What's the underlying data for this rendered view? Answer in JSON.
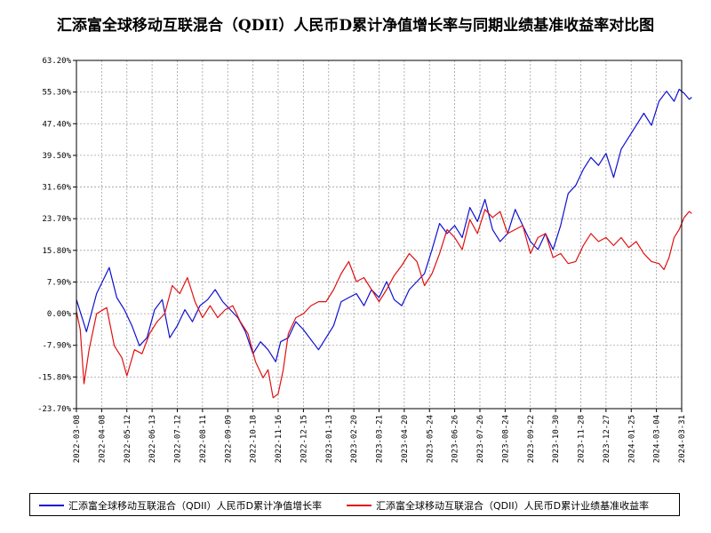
{
  "title": "汇添富全球移动互联混合（QDII）人民币D累计净值增长率与同期业绩基准收益率对比图",
  "colors": {
    "fund": "#1010d0",
    "benchmark": "#e01010",
    "grid": "#a0a0a0",
    "axis": "#000000"
  },
  "chart_data": {
    "type": "line",
    "title": "汇添富全球移动互联混合（QDII）人民币D累计净值增长率与同期业绩基准收益率对比图",
    "y_ticks": [
      "63.20%",
      "55.30%",
      "47.40%",
      "39.50%",
      "31.60%",
      "23.70%",
      "15.80%",
      "7.90%",
      "0.00%",
      "-7.90%",
      "-15.80%",
      "-23.70%"
    ],
    "ylim": [
      -23.7,
      63.2
    ],
    "x_ticks": [
      "2022-03-08",
      "2022-04-08",
      "2022-05-12",
      "2022-06-13",
      "2022-07-12",
      "2022-08-11",
      "2022-09-09",
      "2022-10-18",
      "2022-11-16",
      "2022-12-15",
      "2023-01-13",
      "2023-02-20",
      "2023-03-21",
      "2023-04-20",
      "2023-05-24",
      "2023-06-26",
      "2023-07-26",
      "2023-08-24",
      "2023-09-22",
      "2023-10-30",
      "2023-11-28",
      "2023-12-27",
      "2024-01-25",
      "2024-03-04",
      "2024-03-31"
    ],
    "grid": true,
    "legend_position": "bottom",
    "series": [
      {
        "name": "汇添富全球移动互联混合（QDII）人民币D累计净值增长率",
        "color": "#1010d0",
        "points": [
          [
            0,
            3.5
          ],
          [
            0.4,
            -4.5
          ],
          [
            0.8,
            5.0
          ],
          [
            1.3,
            11.5
          ],
          [
            1.6,
            4.0
          ],
          [
            1.9,
            1.0
          ],
          [
            2.2,
            -3.0
          ],
          [
            2.5,
            -8.0
          ],
          [
            2.8,
            -6.0
          ],
          [
            3.1,
            1.0
          ],
          [
            3.4,
            3.5
          ],
          [
            3.7,
            -6.0
          ],
          [
            4.0,
            -3.0
          ],
          [
            4.3,
            1.0
          ],
          [
            4.6,
            -2.0
          ],
          [
            4.9,
            2.0
          ],
          [
            5.2,
            3.5
          ],
          [
            5.5,
            6.0
          ],
          [
            5.8,
            3.0
          ],
          [
            6.1,
            1.0
          ],
          [
            6.4,
            -1.0
          ],
          [
            6.7,
            -4.5
          ],
          [
            7.0,
            -10.0
          ],
          [
            7.3,
            -7.0
          ],
          [
            7.6,
            -9.0
          ],
          [
            7.9,
            -12.0
          ],
          [
            8.1,
            -7.0
          ],
          [
            8.4,
            -6.0
          ],
          [
            8.7,
            -2.0
          ],
          [
            9.0,
            -4.0
          ],
          [
            9.3,
            -6.5
          ],
          [
            9.6,
            -9.0
          ],
          [
            9.9,
            -6.0
          ],
          [
            10.2,
            -3.0
          ],
          [
            10.5,
            3.0
          ],
          [
            10.8,
            4.0
          ],
          [
            11.1,
            5.0
          ],
          [
            11.4,
            2.0
          ],
          [
            11.7,
            6.0
          ],
          [
            12.0,
            4.0
          ],
          [
            12.3,
            8.0
          ],
          [
            12.6,
            3.5
          ],
          [
            12.9,
            2.0
          ],
          [
            13.2,
            6.0
          ],
          [
            13.5,
            8.0
          ],
          [
            13.8,
            10.0
          ],
          [
            14.1,
            16.0
          ],
          [
            14.4,
            22.5
          ],
          [
            14.7,
            20.0
          ],
          [
            15.0,
            22.0
          ],
          [
            15.3,
            19.0
          ],
          [
            15.6,
            26.5
          ],
          [
            15.9,
            23.0
          ],
          [
            16.2,
            28.5
          ],
          [
            16.5,
            21.0
          ],
          [
            16.8,
            18.0
          ],
          [
            17.1,
            20.0
          ],
          [
            17.4,
            26.0
          ],
          [
            17.7,
            22.0
          ],
          [
            18.0,
            18.0
          ],
          [
            18.3,
            16.0
          ],
          [
            18.6,
            20.0
          ],
          [
            18.9,
            16.0
          ],
          [
            19.2,
            22.0
          ],
          [
            19.5,
            30.0
          ],
          [
            19.8,
            32.0
          ],
          [
            20.1,
            36.0
          ],
          [
            20.4,
            39.0
          ],
          [
            20.7,
            37.0
          ],
          [
            21.0,
            40.0
          ],
          [
            21.3,
            34.0
          ],
          [
            21.6,
            41.0
          ],
          [
            21.9,
            44.0
          ],
          [
            22.2,
            47.0
          ],
          [
            22.5,
            50.0
          ],
          [
            22.8,
            47.0
          ],
          [
            23.1,
            53.0
          ],
          [
            23.4,
            55.5
          ],
          [
            23.7,
            53.0
          ],
          [
            23.9,
            56.0
          ],
          [
            24.1,
            55.0
          ],
          [
            24.3,
            53.5
          ],
          [
            24.4,
            54.0
          ]
        ]
      },
      {
        "name": "汇添富全球移动互联混合（QDII）人民币D累计业绩基准收益率",
        "color": "#e01010",
        "points": [
          [
            0,
            0.5
          ],
          [
            0.15,
            -4.0
          ],
          [
            0.3,
            -17.5
          ],
          [
            0.5,
            -9.0
          ],
          [
            0.8,
            0.0
          ],
          [
            1.2,
            1.5
          ],
          [
            1.5,
            -8.0
          ],
          [
            1.8,
            -11.0
          ],
          [
            2.0,
            -15.5
          ],
          [
            2.3,
            -9.0
          ],
          [
            2.6,
            -10.0
          ],
          [
            2.9,
            -5.0
          ],
          [
            3.2,
            -2.0
          ],
          [
            3.5,
            0.0
          ],
          [
            3.8,
            7.0
          ],
          [
            4.1,
            5.0
          ],
          [
            4.4,
            9.0
          ],
          [
            4.7,
            3.0
          ],
          [
            5.0,
            -1.0
          ],
          [
            5.3,
            2.0
          ],
          [
            5.6,
            -1.0
          ],
          [
            5.9,
            1.0
          ],
          [
            6.2,
            2.0
          ],
          [
            6.5,
            -2.0
          ],
          [
            6.8,
            -5.0
          ],
          [
            7.1,
            -12.0
          ],
          [
            7.4,
            -16.0
          ],
          [
            7.6,
            -14.0
          ],
          [
            7.8,
            -21.0
          ],
          [
            8.0,
            -20.0
          ],
          [
            8.2,
            -14.0
          ],
          [
            8.4,
            -5.0
          ],
          [
            8.7,
            -1.0
          ],
          [
            9.0,
            0.0
          ],
          [
            9.3,
            2.0
          ],
          [
            9.6,
            3.0
          ],
          [
            9.9,
            3.0
          ],
          [
            10.2,
            6.0
          ],
          [
            10.5,
            10.0
          ],
          [
            10.8,
            13.0
          ],
          [
            11.1,
            8.0
          ],
          [
            11.4,
            9.0
          ],
          [
            11.7,
            6.0
          ],
          [
            12.0,
            3.0
          ],
          [
            12.3,
            6.0
          ],
          [
            12.6,
            9.5
          ],
          [
            12.9,
            12.0
          ],
          [
            13.2,
            15.0
          ],
          [
            13.5,
            13.0
          ],
          [
            13.8,
            7.0
          ],
          [
            14.1,
            10.0
          ],
          [
            14.4,
            15.0
          ],
          [
            14.7,
            21.0
          ],
          [
            15.0,
            19.0
          ],
          [
            15.3,
            16.0
          ],
          [
            15.6,
            23.5
          ],
          [
            15.9,
            20.0
          ],
          [
            16.2,
            26.0
          ],
          [
            16.5,
            24.0
          ],
          [
            16.8,
            25.5
          ],
          [
            17.1,
            20.0
          ],
          [
            17.4,
            21.0
          ],
          [
            17.7,
            22.0
          ],
          [
            18.0,
            15.0
          ],
          [
            18.3,
            19.0
          ],
          [
            18.6,
            20.0
          ],
          [
            18.9,
            14.0
          ],
          [
            19.2,
            15.0
          ],
          [
            19.5,
            12.5
          ],
          [
            19.8,
            13.0
          ],
          [
            20.1,
            17.0
          ],
          [
            20.4,
            20.0
          ],
          [
            20.7,
            18.0
          ],
          [
            21.0,
            19.0
          ],
          [
            21.3,
            17.0
          ],
          [
            21.6,
            19.0
          ],
          [
            21.9,
            16.5
          ],
          [
            22.2,
            18.0
          ],
          [
            22.5,
            15.0
          ],
          [
            22.8,
            13.0
          ],
          [
            23.1,
            12.5
          ],
          [
            23.3,
            11.0
          ],
          [
            23.5,
            14.0
          ],
          [
            23.7,
            19.0
          ],
          [
            23.9,
            21.0
          ],
          [
            24.1,
            24.0
          ],
          [
            24.3,
            25.5
          ],
          [
            24.4,
            25.0
          ]
        ]
      }
    ]
  }
}
